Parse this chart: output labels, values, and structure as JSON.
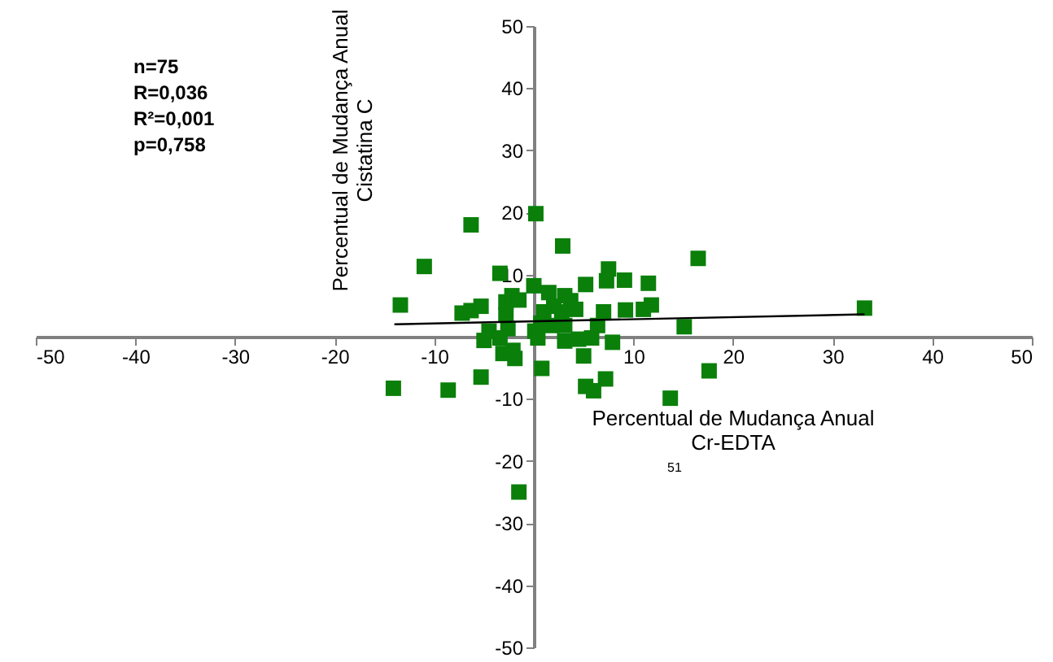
{
  "chart_data": {
    "type": "scatter",
    "xlabel": "Percentual de Mudança Anual\nCr-EDTA",
    "ylabel": "Percentual de Mudança Anual\nCistatina C",
    "annotations": [
      "n=75\nR=0,036\nR²=0,001\np=0,758",
      "51"
    ],
    "xlim": [
      -50,
      50
    ],
    "ylim": [
      -50,
      50
    ],
    "xticks": [
      -50,
      -40,
      -30,
      -20,
      -10,
      10,
      20,
      30,
      40,
      50
    ],
    "yticks": [
      -50,
      -40,
      -30,
      -20,
      -10,
      10,
      20,
      30,
      40,
      50
    ],
    "marker": "square",
    "grid": false,
    "series": [
      {
        "color": "#0a7f0a",
        "x": [
          0.2,
          -6.3,
          2.9,
          -11,
          -13.4,
          -3.4,
          0,
          7.5,
          9.1,
          7.3,
          11.5,
          5.2,
          -7.2,
          -6.3,
          -5.3,
          -2.8,
          -2.2,
          -1.5,
          1.5,
          3.1,
          3.7,
          2,
          1,
          2.8,
          4.2,
          0.7,
          1.8,
          3.1,
          0.1,
          -2.8,
          -2.6,
          -4.5,
          -3.4,
          -5,
          0.4,
          3.1,
          4.5,
          5.8,
          7,
          6.4,
          9.2,
          11,
          11.8,
          15.1,
          7.9,
          5,
          -3.1,
          -1.9,
          -2.1,
          0.8,
          -5.3,
          7.2,
          5.2,
          6,
          -14.1,
          -8.6,
          13.7,
          16.5,
          33.2,
          17.6,
          -1.5
        ],
        "values": [
          19.8,
          18,
          14.6,
          11.3,
          5.1,
          10.2,
          8.2,
          10.9,
          9.1,
          9,
          8.6,
          8.4,
          3.8,
          4.2,
          4.9,
          5.6,
          6.6,
          5.9,
          7.1,
          6.6,
          5.8,
          4.9,
          4,
          4,
          4.4,
          2.2,
          1.8,
          1.8,
          0.9,
          3.5,
          1.3,
          0.9,
          -0.2,
          -0.6,
          -0.2,
          -0.7,
          -0.4,
          -0.2,
          4,
          1.8,
          4.3,
          4.4,
          5.1,
          1.6,
          -0.9,
          -3.1,
          -2.7,
          -3.5,
          -2.2,
          -5.1,
          -6.5,
          -6.8,
          -8,
          -8.7,
          -8.3,
          -8.6,
          -9.9,
          12.6,
          4.6,
          -5.5,
          -25
        ]
      },
      {
        "type": "line",
        "marker": "none",
        "color": "#000000",
        "x": [
          -14,
          33.2
        ],
        "values": [
          2.0,
          3.6
        ]
      }
    ]
  }
}
